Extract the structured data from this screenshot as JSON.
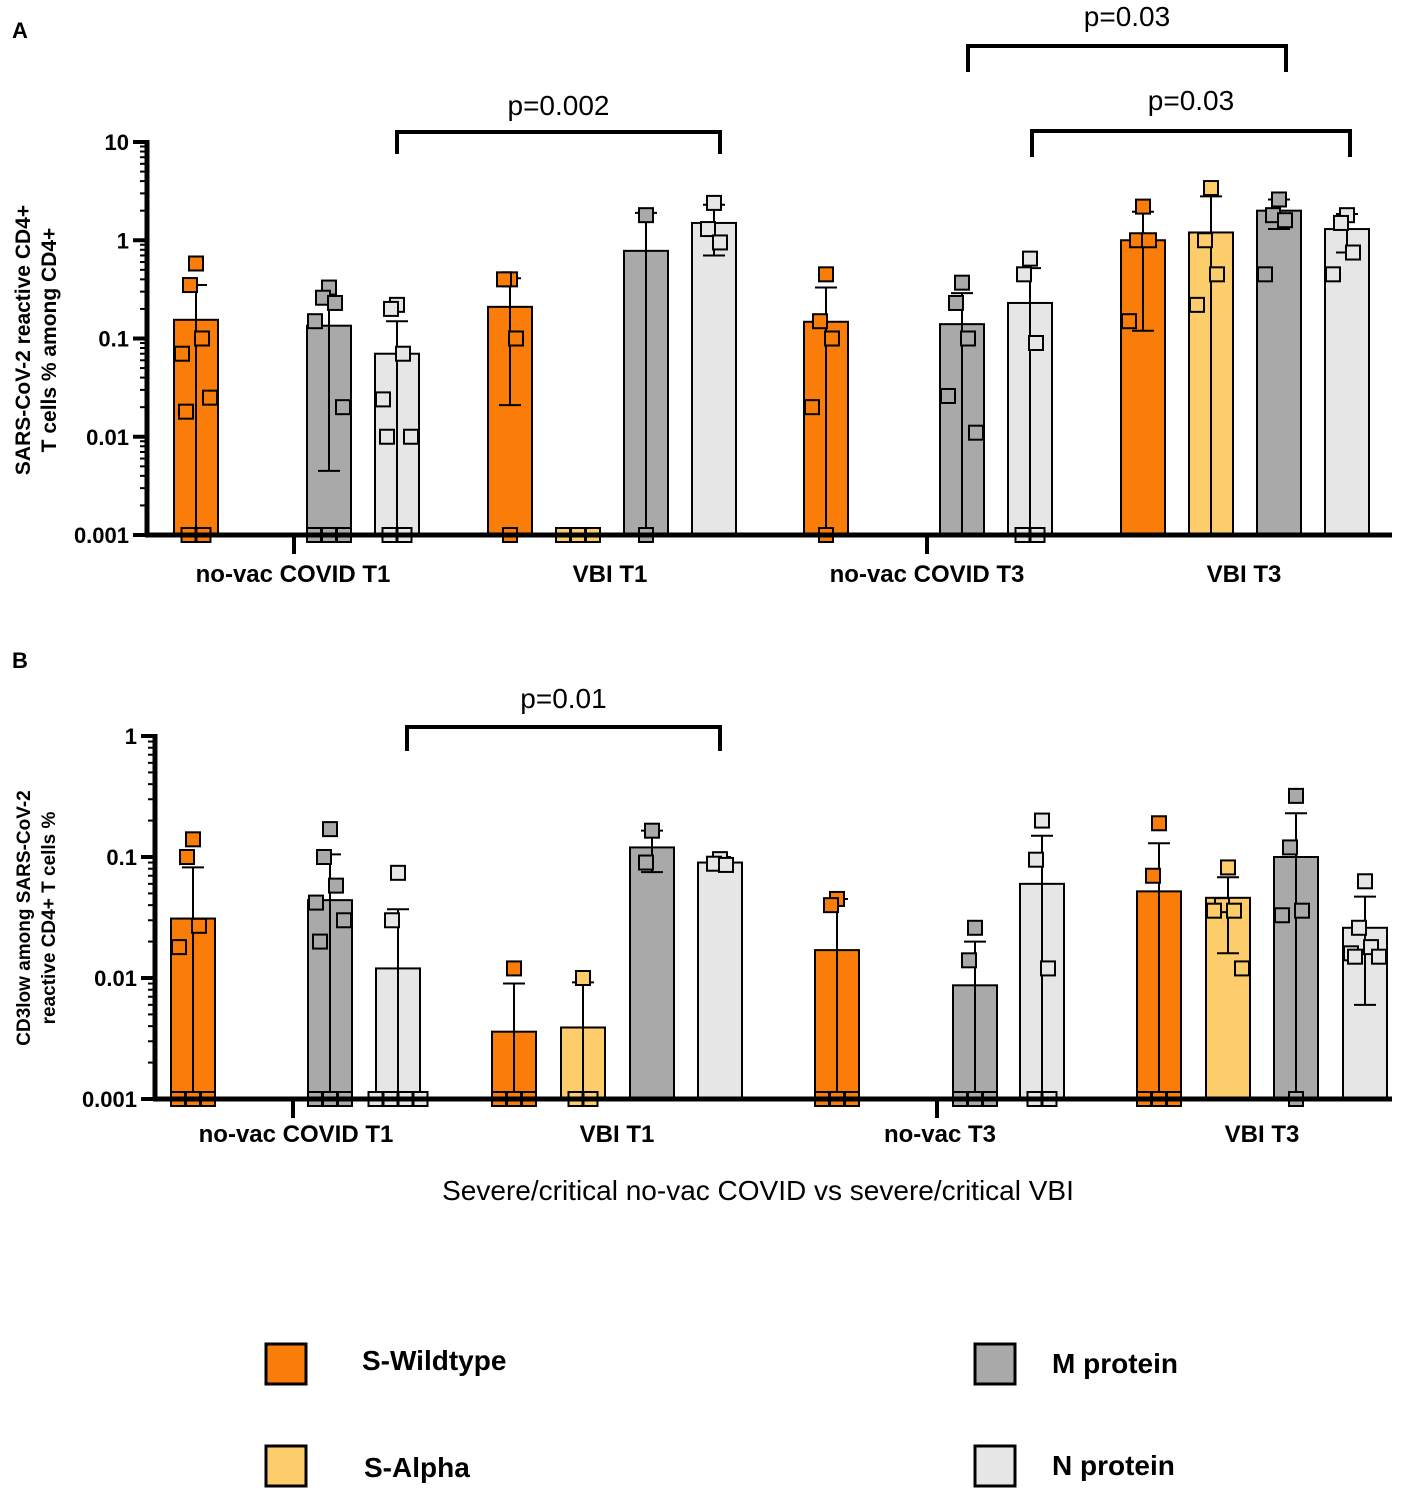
{
  "colors": {
    "s_wildtype": "#fa7d0a",
    "s_alpha": "#fccd6a",
    "m_protein": "#a9a9a9",
    "n_protein": "#e6e6e6",
    "axis": "#000000"
  },
  "chart_data": [
    {
      "panel": "A",
      "type": "bar",
      "yscale": "log",
      "ylabel_lines": [
        "SARS-CoV-2 reactive CD4+",
        "T cells % among CD4+"
      ],
      "ylim": [
        0.001,
        10
      ],
      "yticks": [
        "10",
        "1",
        "0.1",
        "0.01",
        "0.001"
      ],
      "groups": [
        "no-vac COVID T1",
        "VBI T1",
        "no-vac COVID T3",
        "VBI T3"
      ],
      "significance": [
        {
          "label": "p=0.002",
          "from": "no-vac COVID T1 / N protein",
          "to": "VBI T1 / N protein"
        },
        {
          "label": "p=0.03",
          "from": "no-vac COVID T3 / M protein",
          "to": "VBI T3 / M protein"
        },
        {
          "label": "p=0.03",
          "from": "no-vac COVID T3 / N protein",
          "to": "VBI T3 / N protein"
        }
      ],
      "bars": [
        {
          "group": "no-vac COVID T1",
          "antigen": "S-Wildtype",
          "value": 0.155,
          "err_hi": 0.35,
          "points": [
            0.58,
            0.35,
            0.1,
            0.07,
            0.025,
            0.018,
            0.001,
            0.001
          ]
        },
        {
          "group": "no-vac COVID T1",
          "antigen": "M protein",
          "value": 0.135,
          "err_hi": 0.27,
          "err_lo": 0.0045,
          "points": [
            0.33,
            0.26,
            0.23,
            0.15,
            0.02,
            0.001,
            0.001,
            0.001
          ]
        },
        {
          "group": "no-vac COVID T1",
          "antigen": "N protein",
          "value": 0.07,
          "err_hi": 0.15,
          "points": [
            0.22,
            0.2,
            0.07,
            0.024,
            0.01,
            0.01,
            0.001,
            0.001
          ]
        },
        {
          "group": "VBI T1",
          "antigen": "S-Wildtype",
          "value": 0.21,
          "err_hi": 0.41,
          "err_lo": 0.021,
          "points": [
            0.4,
            0.4,
            0.1,
            0.001
          ]
        },
        {
          "group": "VBI T1",
          "antigen": "S-Alpha",
          "value": 0.001,
          "points": [
            0.001,
            0.001,
            0.001
          ]
        },
        {
          "group": "VBI T1",
          "antigen": "M protein",
          "value": 0.78,
          "err_hi": 1.9,
          "points": [
            1.8,
            0.001
          ]
        },
        {
          "group": "VBI T1",
          "antigen": "N protein",
          "value": 1.5,
          "err_hi": 2.3,
          "err_lo": 0.7,
          "points": [
            2.4,
            1.3,
            0.95
          ]
        },
        {
          "group": "no-vac COVID T3",
          "antigen": "S-Wildtype",
          "value": 0.148,
          "err_hi": 0.33,
          "points": [
            0.45,
            0.15,
            0.1,
            0.02,
            0.001
          ]
        },
        {
          "group": "no-vac COVID T3",
          "antigen": "M protein",
          "value": 0.14,
          "err_hi": 0.29,
          "points": [
            0.37,
            0.23,
            0.1,
            0.026,
            0.011
          ]
        },
        {
          "group": "no-vac COVID T3",
          "antigen": "N protein",
          "value": 0.23,
          "err_hi": 0.52,
          "points": [
            0.65,
            0.45,
            0.09,
            0.001,
            0.001
          ]
        },
        {
          "group": "VBI T3",
          "antigen": "S-Wildtype",
          "value": 1.0,
          "err_hi": 1.95,
          "err_lo": 0.12,
          "points": [
            2.2,
            1.0,
            1.0,
            0.15
          ]
        },
        {
          "group": "VBI T3",
          "antigen": "S-Alpha",
          "value": 1.2,
          "err_hi": 2.8,
          "points": [
            3.4,
            1.0,
            0.45,
            0.22
          ]
        },
        {
          "group": "VBI T3",
          "antigen": "M protein",
          "value": 2.0,
          "err_hi": 2.6,
          "err_lo": 1.3,
          "points": [
            2.6,
            1.8,
            1.6,
            0.45
          ]
        },
        {
          "group": "VBI T3",
          "antigen": "N protein",
          "value": 1.3,
          "err_hi": 1.85,
          "err_lo": 0.75,
          "points": [
            1.8,
            1.5,
            0.75,
            0.45
          ]
        }
      ]
    },
    {
      "panel": "B",
      "type": "bar",
      "yscale": "log",
      "ylabel_lines": [
        "CD3low among SARS-CoV-2",
        "reactive CD4+ T cells %"
      ],
      "xlabel": "Severe/critical no-vac COVID vs severe/critical VBI",
      "ylim": [
        0.001,
        1
      ],
      "yticks": [
        "1",
        "0.1",
        "0.01",
        "0.001"
      ],
      "groups": [
        "no-vac COVID T1",
        "VBI T1",
        "no-vac T3",
        "VBI T3"
      ],
      "significance": [
        {
          "label": "p=0.01",
          "from": "no-vac COVID T1 / N protein",
          "to": "VBI T1 / N protein"
        }
      ],
      "bars": [
        {
          "group": "no-vac COVID T1",
          "antigen": "S-Wildtype",
          "value": 0.031,
          "err_hi": 0.082,
          "points": [
            0.14,
            0.1,
            0.027,
            0.018,
            0.001,
            0.001,
            0.001
          ]
        },
        {
          "group": "no-vac COVID T1",
          "antigen": "M protein",
          "value": 0.044,
          "err_hi": 0.105,
          "points": [
            0.17,
            0.1,
            0.058,
            0.042,
            0.03,
            0.02,
            0.001,
            0.001,
            0.001
          ]
        },
        {
          "group": "no-vac COVID T1",
          "antigen": "N protein",
          "value": 0.012,
          "err_hi": 0.037,
          "points": [
            0.074,
            0.03,
            0.001,
            0.001,
            0.001,
            0.001
          ]
        },
        {
          "group": "VBI T1",
          "antigen": "S-Wildtype",
          "value": 0.0036,
          "err_hi": 0.009,
          "points": [
            0.012,
            0.001,
            0.001,
            0.001
          ]
        },
        {
          "group": "VBI T1",
          "antigen": "S-Alpha",
          "value": 0.0039,
          "err_hi": 0.0092,
          "points": [
            0.01,
            0.001,
            0.001
          ]
        },
        {
          "group": "VBI T1",
          "antigen": "M protein",
          "value": 0.12,
          "err_hi": 0.165,
          "err_lo": 0.075,
          "points": [
            0.165,
            0.09
          ]
        },
        {
          "group": "VBI T1",
          "antigen": "N protein",
          "value": 0.09,
          "err_hi": 0.1,
          "err_lo": 0.086,
          "points": [
            0.096,
            0.088,
            0.086
          ]
        },
        {
          "group": "no-vac T3",
          "antigen": "S-Wildtype",
          "value": 0.017,
          "err_hi": 0.045,
          "points": [
            0.045,
            0.04,
            0.001,
            0.001,
            0.001
          ]
        },
        {
          "group": "no-vac T3",
          "antigen": "M protein",
          "value": 0.0087,
          "err_hi": 0.02,
          "points": [
            0.026,
            0.014,
            0.001,
            0.001,
            0.001
          ]
        },
        {
          "group": "no-vac T3",
          "antigen": "N protein",
          "value": 0.06,
          "err_hi": 0.15,
          "points": [
            0.2,
            0.095,
            0.012,
            0.001,
            0.001
          ]
        },
        {
          "group": "VBI T3",
          "antigen": "S-Wildtype",
          "value": 0.052,
          "err_hi": 0.13,
          "points": [
            0.19,
            0.07,
            0.001,
            0.001,
            0.001
          ]
        },
        {
          "group": "VBI T3",
          "antigen": "S-Alpha",
          "value": 0.046,
          "err_hi": 0.068,
          "err_lo": 0.016,
          "points": [
            0.082,
            0.04,
            0.036,
            0.036,
            0.012
          ]
        },
        {
          "group": "VBI T3",
          "antigen": "M protein",
          "value": 0.1,
          "err_hi": 0.23,
          "points": [
            0.32,
            0.12,
            0.036,
            0.033,
            0.001
          ]
        },
        {
          "group": "VBI T3",
          "antigen": "N protein",
          "value": 0.026,
          "err_hi": 0.047,
          "err_lo": 0.006,
          "points": [
            0.063,
            0.026,
            0.018,
            0.016,
            0.015,
            0.015
          ]
        }
      ]
    }
  ],
  "legend": [
    {
      "label": "S-Wildtype",
      "color_key": "s_wildtype"
    },
    {
      "label": "S-Alpha",
      "color_key": "s_alpha"
    },
    {
      "label": "M protein",
      "color_key": "m_protein"
    },
    {
      "label": "N protein",
      "color_key": "n_protein"
    }
  ]
}
